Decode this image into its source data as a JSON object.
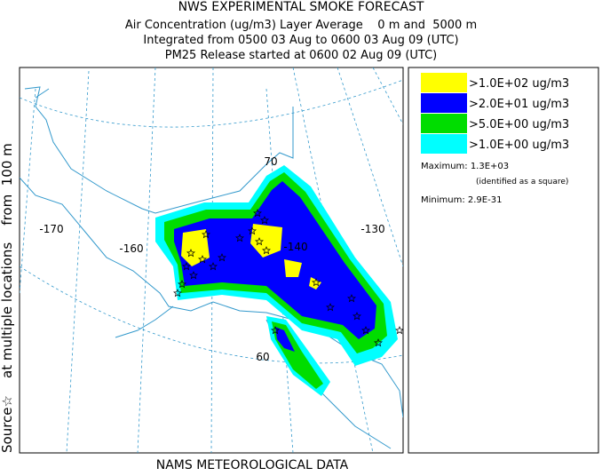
{
  "header": {
    "title": "NWS EXPERIMENTAL SMOKE FORECAST",
    "lines": [
      "Air Concentration (ug/m3) Layer Average    0 m and  5000 m",
      "Integrated from 0500 03 Aug to 0600 03 Aug 09 (UTC)",
      "PM25 Release started at 0600 02 Aug 09 (UTC)"
    ]
  },
  "side_label": "Source☆    at multiple locations    from  100 m",
  "footer": "NAMS METEOROLOGICAL DATA",
  "map": {
    "labels": [
      "-170",
      "-160",
      "-140",
      "-130",
      "70",
      "60"
    ]
  },
  "legend": {
    "items": [
      {
        "label": ">1.0E+02 ug/m3",
        "color": "#ffff00"
      },
      {
        "label": ">2.0E+01 ug/m3",
        "color": "#0000ff"
      },
      {
        "label": ">5.0E+00 ug/m3",
        "color": "#00dd00"
      },
      {
        "label": ">1.0E+00 ug/m3",
        "color": "#00ffff"
      }
    ],
    "maximum": "Maximum: 1.3E+03",
    "maximum_note": "(identified as a square)",
    "minimum": "Minimum: 2.9E-31"
  }
}
